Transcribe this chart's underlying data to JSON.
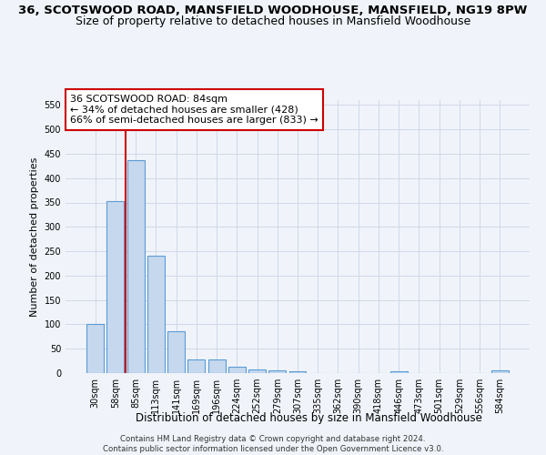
{
  "title_line1": "36, SCOTSWOOD ROAD, MANSFIELD WOODHOUSE, MANSFIELD, NG19 8PW",
  "title_line2": "Size of property relative to detached houses in Mansfield Woodhouse",
  "xlabel": "Distribution of detached houses by size in Mansfield Woodhouse",
  "ylabel": "Number of detached properties",
  "footer": "Contains HM Land Registry data © Crown copyright and database right 2024.\nContains public sector information licensed under the Open Government Licence v3.0.",
  "categories": [
    "30sqm",
    "58sqm",
    "85sqm",
    "113sqm",
    "141sqm",
    "169sqm",
    "196sqm",
    "224sqm",
    "252sqm",
    "279sqm",
    "307sqm",
    "335sqm",
    "362sqm",
    "390sqm",
    "418sqm",
    "446sqm",
    "473sqm",
    "501sqm",
    "529sqm",
    "556sqm",
    "584sqm"
  ],
  "values": [
    100,
    352,
    437,
    240,
    85,
    28,
    28,
    13,
    8,
    5,
    4,
    0,
    0,
    0,
    0,
    4,
    0,
    0,
    0,
    0,
    5
  ],
  "bar_color": "#c5d8ee",
  "bar_edge_color": "#5b9bd5",
  "ylim": [
    0,
    560
  ],
  "yticks": [
    0,
    50,
    100,
    150,
    200,
    250,
    300,
    350,
    400,
    450,
    500,
    550
  ],
  "vline_x": 1.5,
  "annotation_line1": "36 SCOTSWOOD ROAD: 84sqm",
  "annotation_line2": "← 34% of detached houses are smaller (428)",
  "annotation_line3": "66% of semi-detached houses are larger (833) →",
  "annotation_box_color": "#ffffff",
  "annotation_box_edge": "#cc0000",
  "vline_color": "#cc0000",
  "background_color": "#f0f4fa",
  "plot_bg_color": "#f0f4fa",
  "grid_color": "#d0d8e8",
  "title_fontsize": 9.5,
  "subtitle_fontsize": 9,
  "tick_fontsize": 7,
  "ylabel_fontsize": 8,
  "xlabel_fontsize": 8.5,
  "annotation_fontsize": 8
}
